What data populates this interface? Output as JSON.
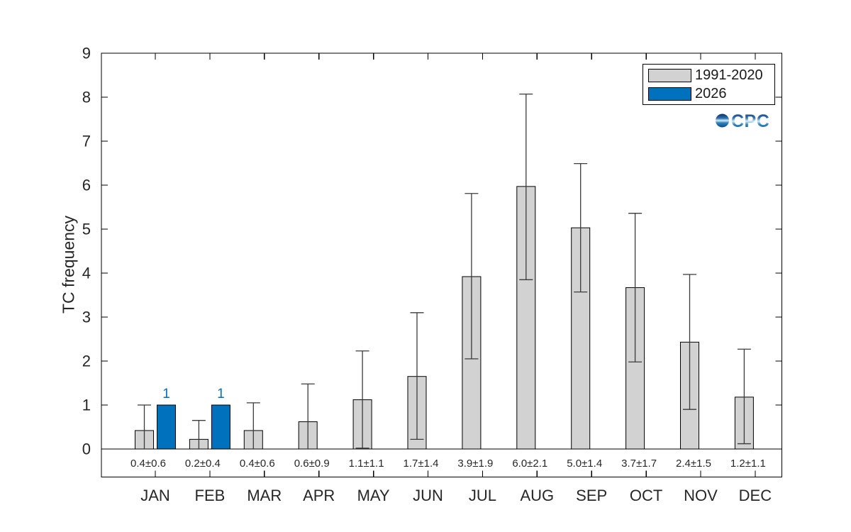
{
  "logo": {
    "text": "CPC"
  },
  "chart_data": {
    "type": "bar",
    "title": "",
    "xlabel": "",
    "ylabel": "TC frequency",
    "ylim": [
      0,
      9
    ],
    "yticks": [
      "0",
      "1",
      "2",
      "3",
      "4",
      "5",
      "6",
      "7",
      "8",
      "9"
    ],
    "grid": false,
    "legend_position": "top-right",
    "categories": [
      "JAN",
      "FEB",
      "MAR",
      "APR",
      "MAY",
      "JUN",
      "JUL",
      "AUG",
      "SEP",
      "OCT",
      "NOV",
      "DEC"
    ],
    "series": [
      {
        "name": "1991-2020",
        "color": "#d2d2d2",
        "edge_color": "#000000",
        "values": [
          0.42,
          0.22,
          0.42,
          0.62,
          1.12,
          1.65,
          3.92,
          5.97,
          5.03,
          3.67,
          2.43,
          1.18
        ],
        "whisker_top": [
          1.0,
          0.65,
          1.05,
          1.48,
          2.23,
          3.1,
          5.81,
          8.07,
          6.49,
          5.36,
          3.97,
          2.27
        ],
        "whisker_bottom": [
          0,
          0,
          0,
          0,
          0.02,
          0.22,
          2.05,
          3.85,
          3.57,
          1.98,
          0.9,
          0.12
        ],
        "lower_cap": [
          false,
          false,
          false,
          false,
          true,
          true,
          true,
          true,
          true,
          true,
          true,
          true
        ]
      },
      {
        "name": "2026",
        "color": "#0072bd",
        "edge_color": "#000000",
        "values": [
          1,
          1,
          null,
          null,
          null,
          null,
          null,
          null,
          null,
          null,
          null,
          null
        ],
        "bar_labels": [
          "1",
          "1",
          null,
          null,
          null,
          null,
          null,
          null,
          null,
          null,
          null,
          null
        ]
      }
    ],
    "annotations": [
      "0.4±0.6",
      "0.2±0.4",
      "0.4±0.6",
      "0.6±0.9",
      "1.1±1.1",
      "1.7±1.4",
      "3.9±1.9",
      "6.0±2.1",
      "5.0±1.4",
      "3.7±1.7",
      "2.4±1.5",
      "1.2±1.1"
    ],
    "errorbar_color": "#3b3b3b",
    "axis_color": "#000000",
    "text_color": "#262626",
    "annotation_color": "#262626",
    "background": "#ffffff"
  }
}
